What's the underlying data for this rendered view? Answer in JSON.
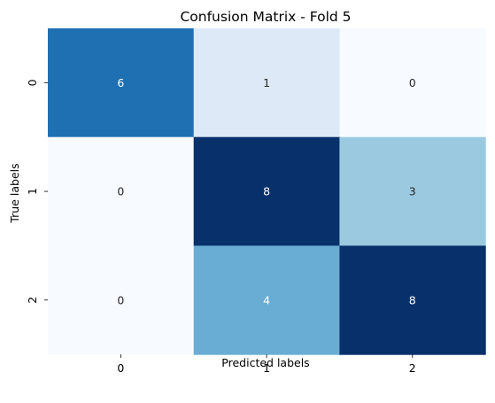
{
  "chart_data": {
    "type": "heatmap",
    "title": "Confusion Matrix - Fold 5",
    "xlabel": "Predicted labels",
    "ylabel": "True labels",
    "x_categories": [
      "0",
      "1",
      "2"
    ],
    "y_categories": [
      "0",
      "1",
      "2"
    ],
    "values": [
      [
        6,
        1,
        0
      ],
      [
        0,
        8,
        3
      ],
      [
        0,
        4,
        8
      ]
    ],
    "colormap": "Blues",
    "value_range": [
      0,
      8
    ],
    "colorbar": false,
    "grid": false,
    "colors": {
      "0": "#f7fbff",
      "1": "#dde9f6",
      "3": "#9bcae0",
      "4": "#69add5",
      "6": "#1f6fb3",
      "8": "#08306b"
    }
  }
}
